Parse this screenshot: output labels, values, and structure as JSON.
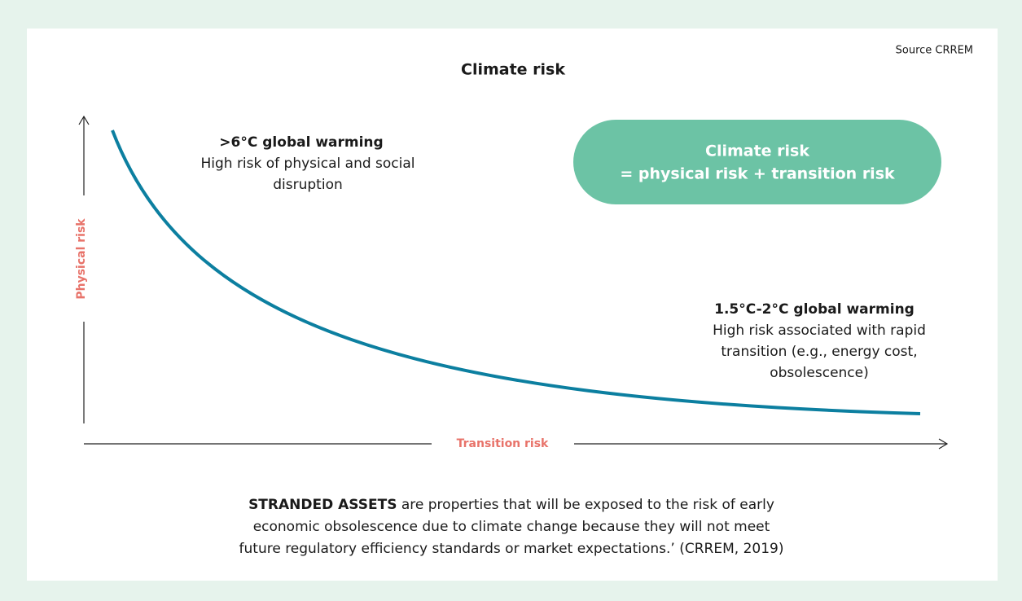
{
  "source": "Source CRREM",
  "title": "Climate risk",
  "axes": {
    "y_label": "Physical risk",
    "x_label": "Transition risk"
  },
  "annotations": [
    {
      "heading": ">6°C global warming",
      "lines": [
        "High risk of physical and social",
        "disruption"
      ]
    },
    {
      "heading": "1.5°C-2°C global warming",
      "lines": [
        "High risk associated with rapid",
        "transition (e.g., energy cost,",
        "obsolescence)"
      ]
    }
  ],
  "callout": {
    "lines": [
      "Climate risk",
      "= physical risk + transition risk"
    ]
  },
  "footer": {
    "bold": "STRANDED ASSETS",
    "lines": [
      " are properties that will be exposed to the risk of early",
      "economic obsolescence due to climate change because they will not meet",
      "future regulatory efficiency standards or market expectations.’ (CRREM, 2019)"
    ]
  }
}
